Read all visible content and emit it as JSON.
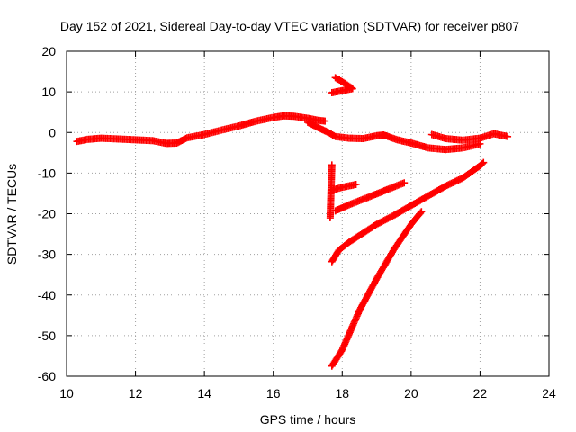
{
  "chart_data": {
    "type": "scatter",
    "title": "Day 152 of 2021, Sidereal Day-to-day VTEC variation (SDTVAR) for receiver p807",
    "xlabel": "GPS time / hours",
    "ylabel": "SDTVAR / TECUs",
    "xlim": [
      10,
      24
    ],
    "ylim": [
      -60,
      20
    ],
    "xticks": [
      "10",
      "12",
      "14",
      "16",
      "18",
      "20",
      "22",
      "24"
    ],
    "yticks": [
      "20",
      "10",
      "0",
      "-10",
      "-20",
      "-30",
      "-40",
      "-50",
      "-60"
    ],
    "grid": true,
    "marker": "+",
    "color": "#ff0000",
    "series": [
      {
        "points": [
          [
            10.3,
            -2.2
          ],
          [
            10.6,
            -1.7
          ],
          [
            11.0,
            -1.4
          ],
          [
            11.5,
            -1.6
          ],
          [
            12.0,
            -1.8
          ],
          [
            12.5,
            -2.0
          ],
          [
            12.9,
            -2.7
          ],
          [
            13.2,
            -2.6
          ],
          [
            13.5,
            -1.3
          ],
          [
            14.0,
            -0.5
          ],
          [
            14.5,
            0.6
          ],
          [
            15.0,
            1.6
          ],
          [
            15.5,
            2.8
          ],
          [
            16.0,
            3.7
          ],
          [
            16.3,
            4.1
          ],
          [
            16.6,
            4.0
          ],
          [
            17.0,
            3.5
          ],
          [
            17.3,
            3.0
          ],
          [
            17.5,
            2.8
          ]
        ]
      },
      {
        "points": [
          [
            17.0,
            2.5
          ],
          [
            17.3,
            1.2
          ],
          [
            17.6,
            0.0
          ],
          [
            17.8,
            -1.0
          ],
          [
            18.2,
            -1.4
          ],
          [
            18.6,
            -1.5
          ],
          [
            19.0,
            -0.8
          ],
          [
            19.2,
            -0.6
          ],
          [
            19.6,
            -1.8
          ],
          [
            20.0,
            -2.6
          ],
          [
            20.5,
            -3.8
          ],
          [
            21.0,
            -4.2
          ],
          [
            21.5,
            -3.8
          ],
          [
            22.0,
            -2.8
          ]
        ]
      },
      {
        "points": [
          [
            20.6,
            -0.5
          ],
          [
            21.0,
            -1.5
          ],
          [
            21.5,
            -1.9
          ],
          [
            22.0,
            -1.4
          ],
          [
            22.4,
            -0.3
          ],
          [
            22.8,
            -1.0
          ]
        ]
      },
      {
        "points": [
          [
            17.8,
            13.5
          ],
          [
            18.0,
            12.5
          ],
          [
            18.3,
            10.8
          ],
          [
            17.7,
            9.8
          ]
        ]
      },
      {
        "points": [
          [
            17.7,
            -14.2
          ],
          [
            18.0,
            -13.5
          ],
          [
            18.4,
            -12.8
          ]
        ]
      },
      {
        "points": [
          [
            17.8,
            -19.3
          ],
          [
            18.2,
            -17.8
          ],
          [
            18.8,
            -15.8
          ],
          [
            19.5,
            -13.4
          ],
          [
            19.8,
            -12.4
          ]
        ]
      },
      {
        "points": [
          [
            17.7,
            -31.8
          ],
          [
            17.9,
            -29.0
          ],
          [
            18.2,
            -27.0
          ],
          [
            18.6,
            -24.8
          ],
          [
            19.0,
            -22.6
          ],
          [
            19.5,
            -20.4
          ],
          [
            20.0,
            -18.0
          ],
          [
            20.5,
            -15.6
          ],
          [
            21.0,
            -13.2
          ],
          [
            21.5,
            -11.2
          ],
          [
            22.0,
            -8.2
          ],
          [
            22.1,
            -7.4
          ]
        ]
      },
      {
        "points": [
          [
            17.7,
            -57.5
          ],
          [
            18.0,
            -53.5
          ],
          [
            18.5,
            -43.8
          ],
          [
            19.0,
            -36.0
          ],
          [
            19.5,
            -28.8
          ],
          [
            20.0,
            -22.6
          ],
          [
            20.3,
            -19.5
          ]
        ]
      },
      {
        "points": [
          [
            17.7,
            -8.0
          ],
          [
            17.65,
            -21.0
          ]
        ]
      }
    ]
  }
}
